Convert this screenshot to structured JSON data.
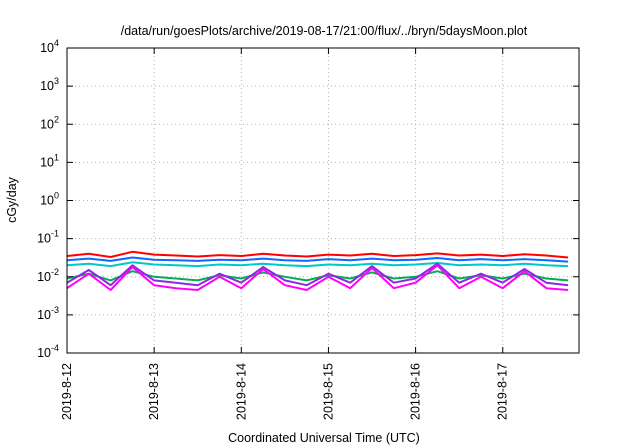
{
  "chart_data": {
    "type": "line",
    "title": "/data/run/goesPlots/archive/2019-08-17/21:00/flux/../bryn/5daysMoon.plot",
    "xlabel": "Coordinated Universal Time (UTC)",
    "ylabel": "cGy/day",
    "yscale": "log",
    "ylim": [
      0.0001,
      10000
    ],
    "xlim": [
      "2019-08-12 00:00",
      "2019-08-17 21:00"
    ],
    "x_ticks": [
      "2019-8-12",
      "2019-8-13",
      "2019-8-14",
      "2019-8-15",
      "2019-8-16",
      "2019-8-17"
    ],
    "y_ticks": [
      {
        "base": "10",
        "exp": "-4"
      },
      {
        "base": "10",
        "exp": "-3"
      },
      {
        "base": "10",
        "exp": "-2"
      },
      {
        "base": "10",
        "exp": "-1"
      },
      {
        "base": "10",
        "exp": "0"
      },
      {
        "base": "10",
        "exp": "1"
      },
      {
        "base": "10",
        "exp": "2"
      },
      {
        "base": "10",
        "exp": "3"
      },
      {
        "base": "10",
        "exp": "4"
      }
    ],
    "grid": true,
    "legend": "none",
    "series_style": [
      {
        "color": "#ff0000"
      },
      {
        "color": "#1565ff"
      },
      {
        "color": "#00c8c8"
      },
      {
        "color": "#00b050"
      },
      {
        "color": "#8a2be2"
      },
      {
        "color": "#ff00ff"
      }
    ],
    "series": [
      {
        "x": [
          "2019-08-12 00:00",
          "2019-08-12 06:00",
          "2019-08-12 12:00",
          "2019-08-12 18:00",
          "2019-08-13 00:00",
          "2019-08-13 06:00",
          "2019-08-13 12:00",
          "2019-08-13 18:00",
          "2019-08-14 00:00",
          "2019-08-14 06:00",
          "2019-08-14 12:00",
          "2019-08-14 18:00",
          "2019-08-15 00:00",
          "2019-08-15 06:00",
          "2019-08-15 12:00",
          "2019-08-15 18:00",
          "2019-08-16 00:00",
          "2019-08-16 06:00",
          "2019-08-16 12:00",
          "2019-08-16 18:00",
          "2019-08-17 00:00",
          "2019-08-17 06:00",
          "2019-08-17 12:00",
          "2019-08-17 18:00"
        ],
        "y": [
          0.035,
          0.04,
          0.033,
          0.045,
          0.038,
          0.036,
          0.034,
          0.037,
          0.035,
          0.04,
          0.036,
          0.034,
          0.038,
          0.036,
          0.04,
          0.035,
          0.037,
          0.041,
          0.036,
          0.038,
          0.035,
          0.039,
          0.036,
          0.032
        ]
      },
      {
        "x": [
          "2019-08-12 00:00",
          "2019-08-12 06:00",
          "2019-08-12 12:00",
          "2019-08-12 18:00",
          "2019-08-13 00:00",
          "2019-08-13 06:00",
          "2019-08-13 12:00",
          "2019-08-13 18:00",
          "2019-08-14 00:00",
          "2019-08-14 06:00",
          "2019-08-14 12:00",
          "2019-08-14 18:00",
          "2019-08-15 00:00",
          "2019-08-15 06:00",
          "2019-08-15 12:00",
          "2019-08-15 18:00",
          "2019-08-16 00:00",
          "2019-08-16 06:00",
          "2019-08-16 12:00",
          "2019-08-16 18:00",
          "2019-08-17 00:00",
          "2019-08-17 06:00",
          "2019-08-17 12:00",
          "2019-08-17 18:00"
        ],
        "y": [
          0.027,
          0.03,
          0.026,
          0.032,
          0.028,
          0.027,
          0.026,
          0.028,
          0.027,
          0.03,
          0.027,
          0.026,
          0.029,
          0.027,
          0.03,
          0.027,
          0.028,
          0.031,
          0.027,
          0.029,
          0.027,
          0.029,
          0.027,
          0.025
        ]
      },
      {
        "x": [
          "2019-08-12 00:00",
          "2019-08-12 06:00",
          "2019-08-12 12:00",
          "2019-08-12 18:00",
          "2019-08-13 00:00",
          "2019-08-13 06:00",
          "2019-08-13 12:00",
          "2019-08-13 18:00",
          "2019-08-14 00:00",
          "2019-08-14 06:00",
          "2019-08-14 12:00",
          "2019-08-14 18:00",
          "2019-08-15 00:00",
          "2019-08-15 06:00",
          "2019-08-15 12:00",
          "2019-08-15 18:00",
          "2019-08-16 00:00",
          "2019-08-16 06:00",
          "2019-08-16 12:00",
          "2019-08-16 18:00",
          "2019-08-17 00:00",
          "2019-08-17 06:00",
          "2019-08-17 12:00",
          "2019-08-17 18:00"
        ],
        "y": [
          0.02,
          0.022,
          0.019,
          0.024,
          0.021,
          0.02,
          0.019,
          0.021,
          0.02,
          0.022,
          0.02,
          0.019,
          0.021,
          0.02,
          0.022,
          0.02,
          0.021,
          0.023,
          0.02,
          0.021,
          0.02,
          0.022,
          0.02,
          0.019
        ]
      },
      {
        "x": [
          "2019-08-12 00:00",
          "2019-08-12 06:00",
          "2019-08-12 12:00",
          "2019-08-12 18:00",
          "2019-08-13 00:00",
          "2019-08-13 06:00",
          "2019-08-13 12:00",
          "2019-08-13 18:00",
          "2019-08-14 00:00",
          "2019-08-14 06:00",
          "2019-08-14 12:00",
          "2019-08-14 18:00",
          "2019-08-15 00:00",
          "2019-08-15 06:00",
          "2019-08-15 12:00",
          "2019-08-15 18:00",
          "2019-08-16 00:00",
          "2019-08-16 06:00",
          "2019-08-16 12:00",
          "2019-08-16 18:00",
          "2019-08-17 00:00",
          "2019-08-17 06:00",
          "2019-08-17 12:00",
          "2019-08-17 18:00"
        ],
        "y": [
          0.009,
          0.012,
          0.008,
          0.014,
          0.01,
          0.009,
          0.008,
          0.011,
          0.009,
          0.013,
          0.01,
          0.008,
          0.011,
          0.009,
          0.013,
          0.009,
          0.01,
          0.014,
          0.009,
          0.011,
          0.009,
          0.012,
          0.009,
          0.008
        ]
      },
      {
        "x": [
          "2019-08-12 00:00",
          "2019-08-12 06:00",
          "2019-08-12 12:00",
          "2019-08-12 18:00",
          "2019-08-13 00:00",
          "2019-08-13 06:00",
          "2019-08-13 12:00",
          "2019-08-13 18:00",
          "2019-08-14 00:00",
          "2019-08-14 06:00",
          "2019-08-14 12:00",
          "2019-08-14 18:00",
          "2019-08-15 00:00",
          "2019-08-15 06:00",
          "2019-08-15 12:00",
          "2019-08-15 18:00",
          "2019-08-16 00:00",
          "2019-08-16 06:00",
          "2019-08-16 12:00",
          "2019-08-16 18:00",
          "2019-08-17 00:00",
          "2019-08-17 06:00",
          "2019-08-17 12:00",
          "2019-08-17 18:00"
        ],
        "y": [
          0.007,
          0.015,
          0.006,
          0.02,
          0.008,
          0.007,
          0.006,
          0.012,
          0.007,
          0.018,
          0.008,
          0.006,
          0.012,
          0.007,
          0.019,
          0.007,
          0.009,
          0.022,
          0.007,
          0.012,
          0.007,
          0.016,
          0.007,
          0.006
        ]
      },
      {
        "x": [
          "2019-08-12 00:00",
          "2019-08-12 06:00",
          "2019-08-12 12:00",
          "2019-08-12 18:00",
          "2019-08-13 00:00",
          "2019-08-13 06:00",
          "2019-08-13 12:00",
          "2019-08-13 18:00",
          "2019-08-14 00:00",
          "2019-08-14 06:00",
          "2019-08-14 12:00",
          "2019-08-14 18:00",
          "2019-08-15 00:00",
          "2019-08-15 06:00",
          "2019-08-15 12:00",
          "2019-08-15 18:00",
          "2019-08-16 00:00",
          "2019-08-16 06:00",
          "2019-08-16 12:00",
          "2019-08-16 18:00",
          "2019-08-17 00:00",
          "2019-08-17 06:00",
          "2019-08-17 12:00",
          "2019-08-17 18:00"
        ],
        "y": [
          0.005,
          0.012,
          0.0045,
          0.018,
          0.006,
          0.005,
          0.0045,
          0.01,
          0.005,
          0.016,
          0.006,
          0.0045,
          0.01,
          0.005,
          0.017,
          0.005,
          0.007,
          0.02,
          0.005,
          0.01,
          0.005,
          0.014,
          0.005,
          0.0045
        ]
      }
    ]
  }
}
